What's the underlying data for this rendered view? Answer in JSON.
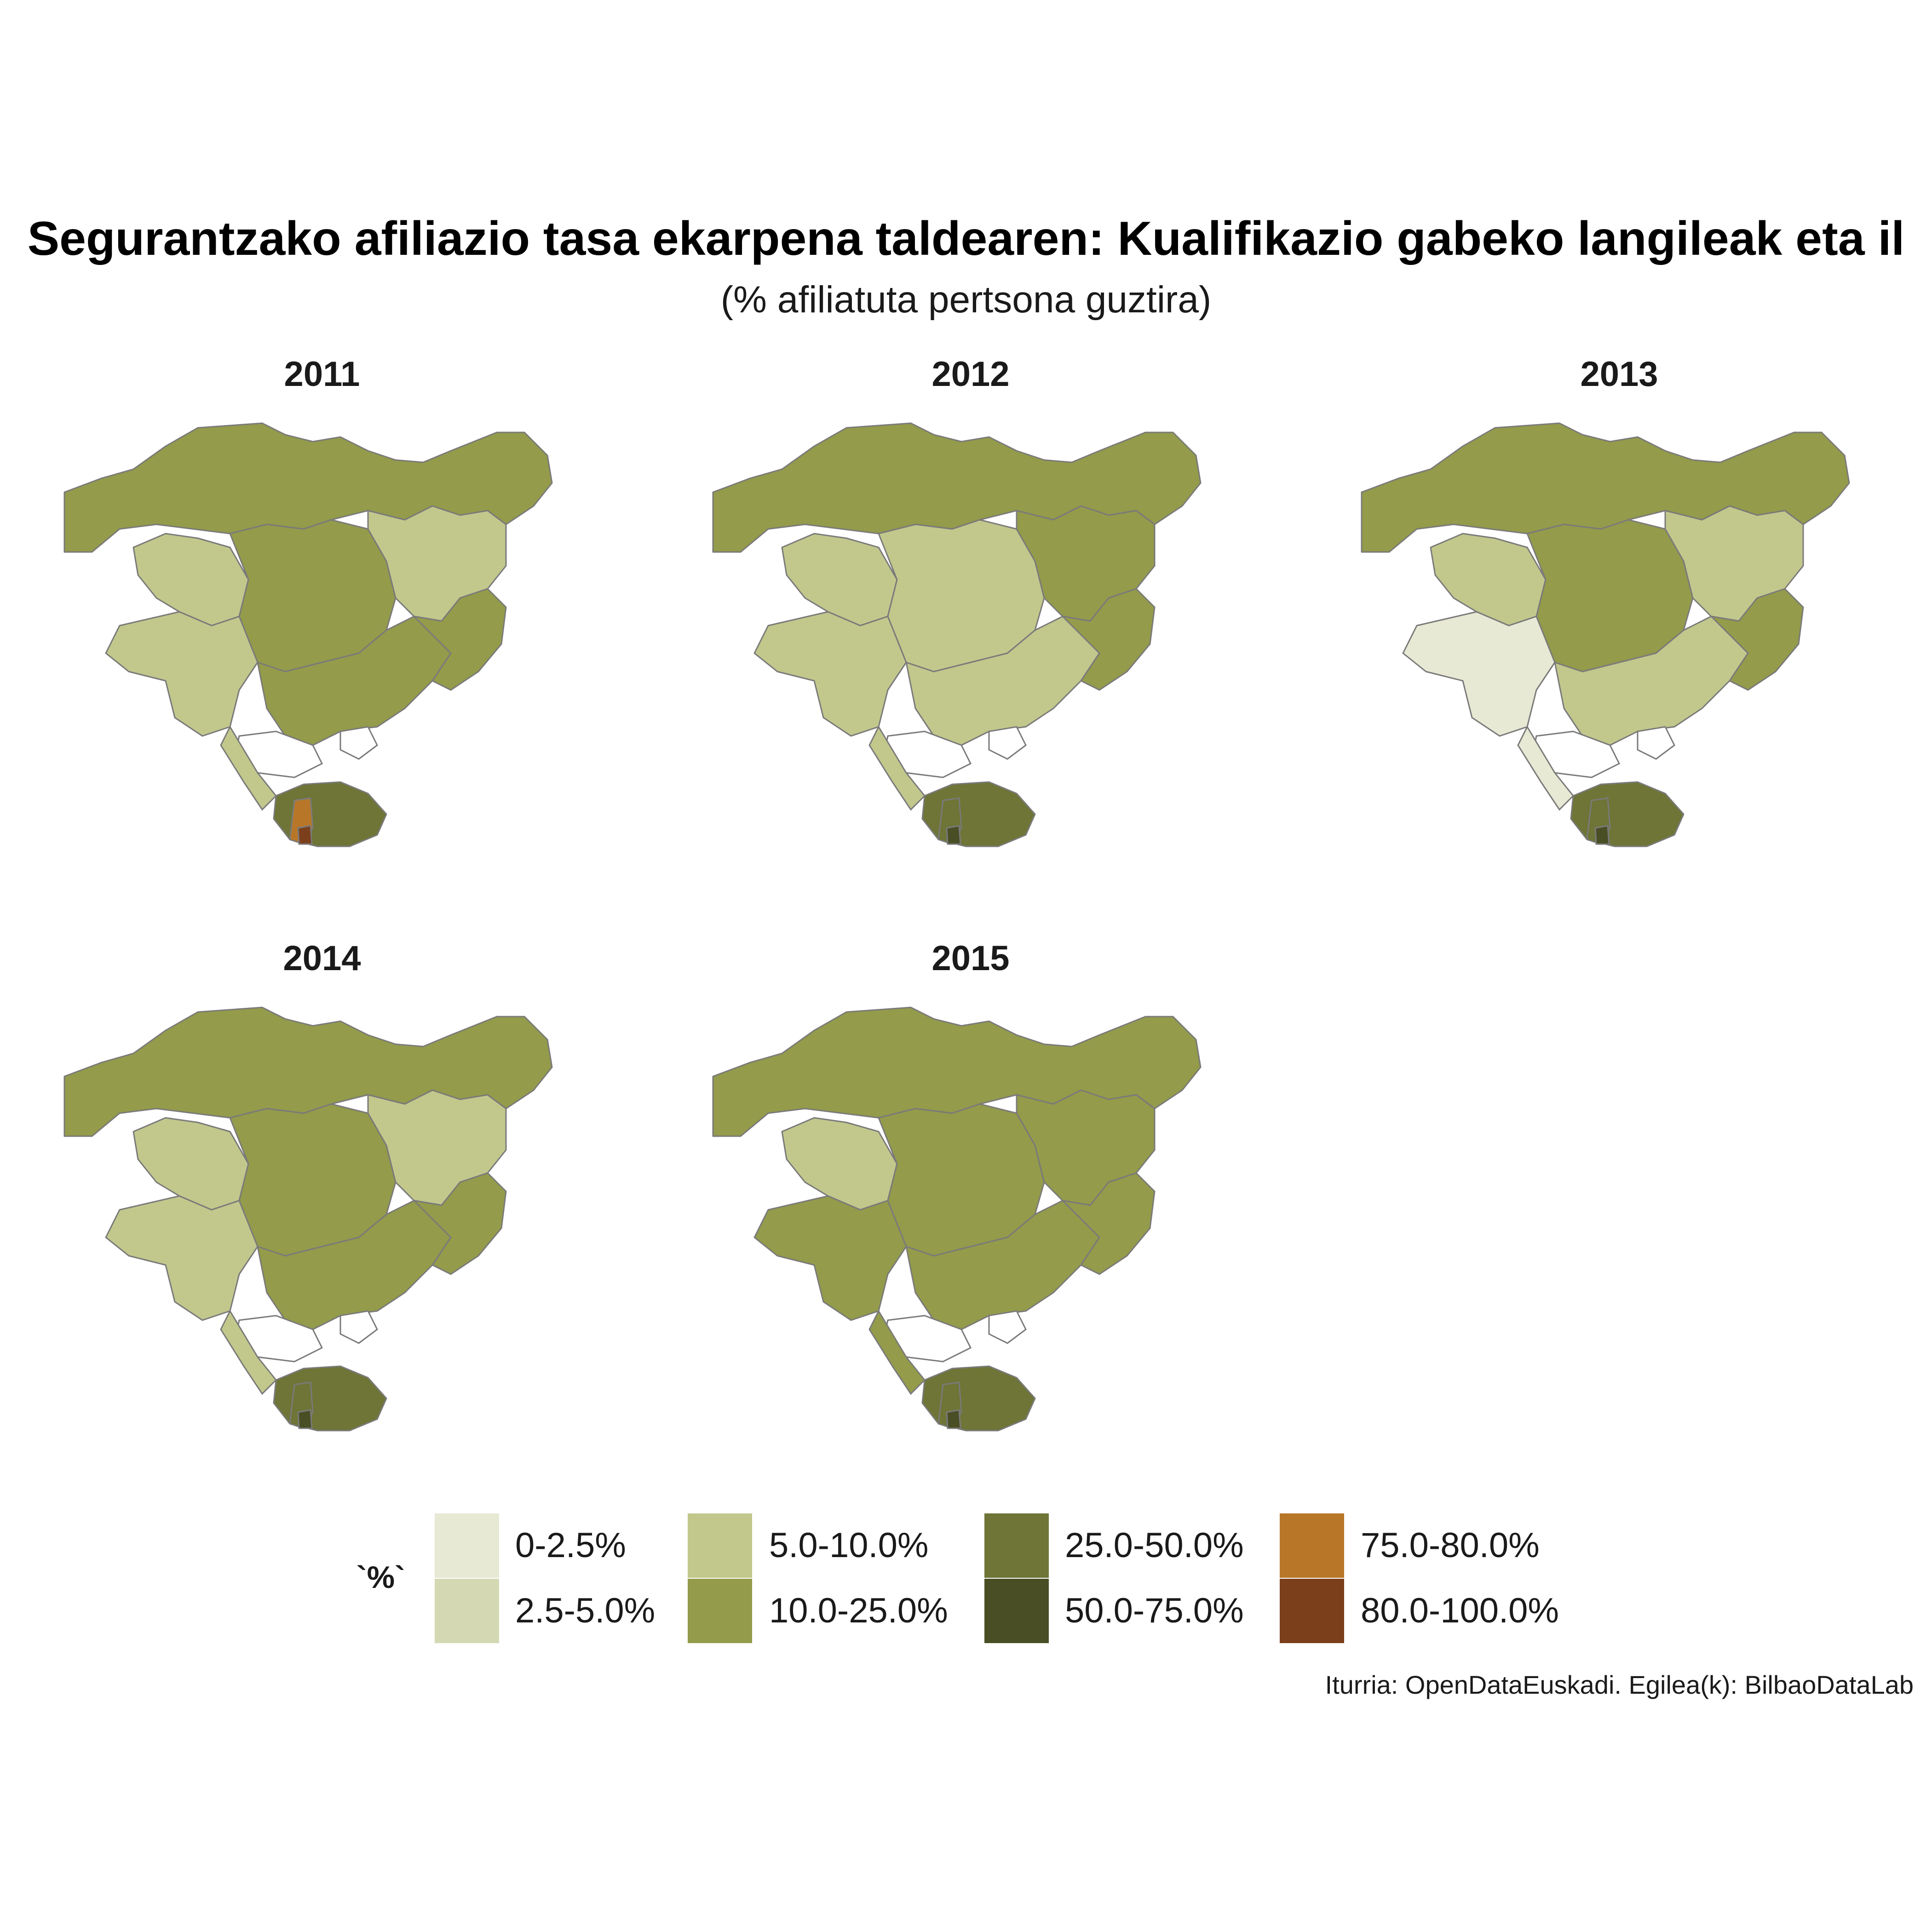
{
  "title": "Segurantzako afiliazio tasa ekarpena taldearen: Kualifikazio gabeko langileak eta il",
  "subtitle": "(% afiliatuta pertsona guztira)",
  "panels": [
    {
      "year": "2011",
      "regions": {
        "west": "#c2c88c",
        "north": "#949b4a",
        "center": "#949b4a",
        "east": "#c2c88c",
        "south": "#6e7536",
        "southwest": "#c2c88c",
        "southcenter": "#949b4a",
        "southeast": "#949b4a",
        "southtip": "#b87728",
        "southtip2": "#7c3f1c"
      }
    },
    {
      "year": "2012",
      "regions": {
        "west": "#c2c88c",
        "north": "#949b4a",
        "center": "#c2c88c",
        "east": "#949b4a",
        "south": "#6e7536",
        "southwest": "#c2c88c",
        "southcenter": "#c2c88c",
        "southeast": "#949b4a",
        "southtip": "#6e7536",
        "southtip2": "#4a4e25"
      }
    },
    {
      "year": "2013",
      "regions": {
        "west": "#c2c88c",
        "north": "#949b4a",
        "center": "#949b4a",
        "east": "#c2c88c",
        "south": "#6e7536",
        "southwest": "#e8e9d4",
        "southcenter": "#c2c88c",
        "southeast": "#949b4a",
        "southtip": "#6e7536",
        "southtip2": "#4a4e25"
      }
    },
    {
      "year": "2014",
      "regions": {
        "west": "#c2c88c",
        "north": "#949b4a",
        "center": "#949b4a",
        "east": "#c2c88c",
        "south": "#6e7536",
        "southwest": "#c2c88c",
        "southcenter": "#949b4a",
        "southeast": "#949b4a",
        "southtip": "#6e7536",
        "southtip2": "#4a4e25"
      }
    },
    {
      "year": "2015",
      "regions": {
        "west": "#c2c88c",
        "north": "#949b4a",
        "center": "#949b4a",
        "east": "#949b4a",
        "south": "#6e7536",
        "southwest": "#949b4a",
        "southcenter": "#949b4a",
        "southeast": "#949b4a",
        "southtip": "#6e7536",
        "southtip2": "#4a4e25"
      }
    }
  ],
  "legend": {
    "title": "`%`",
    "items": [
      {
        "label": "0-2.5%",
        "color": "#e8e9d4"
      },
      {
        "label": "2.5-5.0%",
        "color": "#d5d9b3"
      },
      {
        "label": "5.0-10.0%",
        "color": "#c2c88c"
      },
      {
        "label": "10.0-25.0%",
        "color": "#949b4a"
      },
      {
        "label": "25.0-50.0%",
        "color": "#6e7536"
      },
      {
        "label": "50.0-75.0%",
        "color": "#4a4e25"
      },
      {
        "label": "75.0-80.0%",
        "color": "#b87728"
      },
      {
        "label": "80.0-100.0%",
        "color": "#7c3f1c"
      }
    ]
  },
  "caption": "Iturria: OpenDataEuskadi. Egilea(k): BilbaoDataLab"
}
